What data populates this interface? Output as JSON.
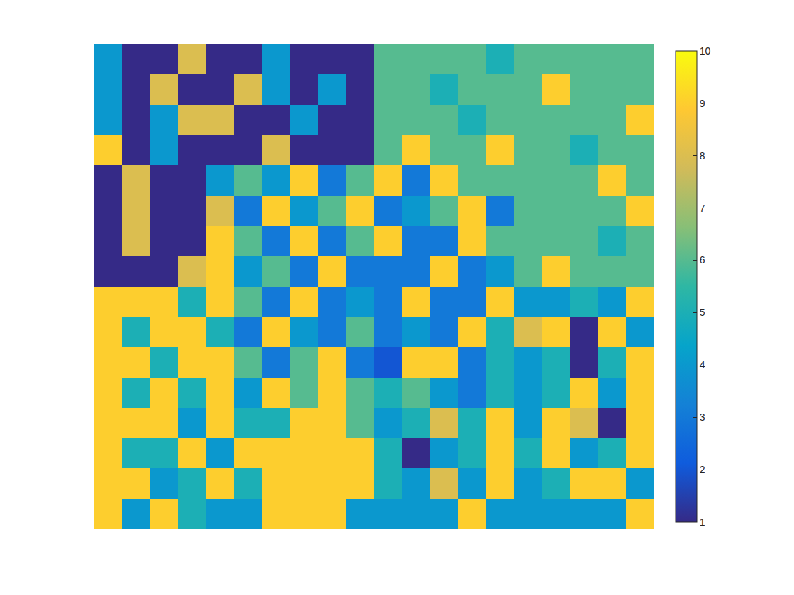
{
  "chart_data": {
    "type": "heatmap",
    "tick_labels": false,
    "cells": [
      [
        4,
        1,
        1,
        8,
        1,
        1,
        4,
        1,
        1,
        1,
        6,
        6,
        6,
        6,
        5,
        6,
        6,
        6,
        6,
        6
      ],
      [
        4,
        1,
        8,
        1,
        1,
        8,
        4,
        1,
        4,
        1,
        6,
        6,
        5,
        6,
        6,
        6,
        9,
        6,
        6,
        6
      ],
      [
        4,
        1,
        4,
        8,
        8,
        1,
        1,
        4,
        1,
        1,
        6,
        6,
        6,
        5,
        6,
        6,
        6,
        6,
        6,
        9
      ],
      [
        9,
        1,
        4,
        1,
        1,
        1,
        8,
        1,
        1,
        1,
        6,
        9,
        6,
        6,
        9,
        6,
        6,
        5,
        6,
        6
      ],
      [
        1,
        8,
        1,
        1,
        4,
        6,
        4,
        9,
        3,
        6,
        9,
        3,
        9,
        6,
        6,
        6,
        6,
        6,
        9,
        6
      ],
      [
        1,
        8,
        1,
        1,
        8,
        3,
        9,
        4,
        6,
        9,
        3,
        4,
        6,
        9,
        3,
        6,
        6,
        6,
        6,
        9
      ],
      [
        1,
        8,
        1,
        1,
        9,
        6,
        3,
        9,
        3,
        6,
        9,
        3,
        3,
        9,
        6,
        6,
        6,
        6,
        5,
        6
      ],
      [
        1,
        1,
        1,
        8,
        9,
        4,
        6,
        3,
        9,
        3,
        3,
        3,
        9,
        3,
        4,
        6,
        9,
        6,
        6,
        6
      ],
      [
        9,
        9,
        9,
        5,
        9,
        6,
        3,
        9,
        3,
        4,
        3,
        9,
        3,
        3,
        9,
        4,
        4,
        5,
        4,
        9
      ],
      [
        9,
        5,
        9,
        9,
        5,
        3,
        9,
        4,
        3,
        6,
        3,
        4,
        3,
        9,
        5,
        8,
        9,
        1,
        9,
        4
      ],
      [
        9,
        9,
        5,
        9,
        9,
        6,
        3,
        6,
        9,
        3,
        2,
        9,
        9,
        3,
        5,
        4,
        5,
        1,
        5,
        9
      ],
      [
        9,
        5,
        9,
        5,
        9,
        4,
        9,
        6,
        9,
        6,
        5,
        6,
        4,
        3,
        5,
        4,
        5,
        9,
        4,
        9
      ],
      [
        9,
        9,
        9,
        4,
        9,
        5,
        5,
        9,
        9,
        6,
        4,
        5,
        8,
        5,
        9,
        4,
        9,
        8,
        1,
        9
      ],
      [
        9,
        5,
        5,
        9,
        4,
        9,
        9,
        9,
        9,
        9,
        5,
        1,
        4,
        5,
        9,
        5,
        9,
        4,
        5,
        9
      ],
      [
        9,
        9,
        4,
        5,
        9,
        5,
        9,
        9,
        9,
        9,
        5,
        4,
        8,
        4,
        9,
        4,
        5,
        9,
        9,
        4
      ],
      [
        9,
        4,
        9,
        5,
        4,
        4,
        9,
        9,
        9,
        4,
        4,
        4,
        4,
        9,
        4,
        4,
        4,
        4,
        4,
        9
      ]
    ],
    "colorbar": {
      "range": [
        1,
        10
      ],
      "ticks": [
        1,
        2,
        3,
        4,
        5,
        6,
        7,
        8,
        9,
        10
      ]
    }
  }
}
